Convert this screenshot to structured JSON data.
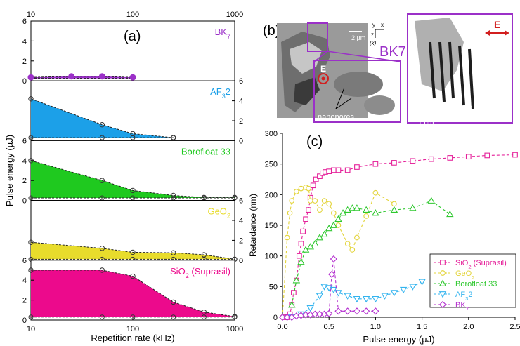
{
  "panel_a": {
    "label": "(a)",
    "xlabel": "Repetition rate (kHz)",
    "ylabel": "Pulse energy (µJ)",
    "x_ticks": [
      "10",
      "100",
      "1000"
    ],
    "y_ticks": [
      "0",
      "2",
      "4",
      "6"
    ]
  },
  "panel_b": {
    "label": "(b)",
    "material": "BK7",
    "scale_2um": "2 µm",
    "scale_1um_inset": "1 µm",
    "scale_1um_right": "1 µm",
    "E_left": "E",
    "E_right": "E",
    "nanopores": "nanopores",
    "nanoplanes": "nanoplanes",
    "axis_y": "y",
    "axis_x": "x",
    "axis_z": "z",
    "axis_k": "(k)"
  },
  "panel_c": {
    "label": "(c)",
    "xlabel": "Pulse energy (µJ)",
    "ylabel": "Retardance (nm)",
    "x_ticks": [
      "0.0",
      "0.5",
      "1.0",
      "1.5",
      "2.0",
      "2.5"
    ],
    "y_ticks": [
      "0",
      "50",
      "100",
      "150",
      "200",
      "250",
      "300"
    ]
  },
  "chart_data": [
    {
      "type": "area",
      "panel": "a",
      "xlabel": "Repetition rate (kHz)",
      "ylabel": "Pulse energy (µJ)",
      "x_scale": "log",
      "xlim": [
        10,
        1000
      ],
      "ylim": [
        0,
        6
      ],
      "subplots": [
        {
          "name": "BK7",
          "color": "#9b30c8",
          "y_axis": "left",
          "marker": "circle",
          "x": [
            10,
            25,
            50,
            100
          ],
          "upper": [
            0.35,
            0.45,
            0.45,
            0.35
          ],
          "lower": [
            0.25,
            0.25,
            0.25,
            0.25
          ]
        },
        {
          "name": "AF32",
          "color": "#1ca0e8",
          "y_axis": "right",
          "marker": "circle",
          "x": [
            10,
            50,
            100,
            250
          ],
          "upper": [
            4.2,
            1.6,
            0.7,
            0.3
          ],
          "lower": [
            0.3,
            0.3,
            0.3,
            0.3
          ]
        },
        {
          "name": "Borofloat 33",
          "color": "#1fc91f",
          "y_axis": "left",
          "marker": "circle",
          "x": [
            10,
            50,
            100,
            250,
            500,
            1000
          ],
          "upper": [
            4.0,
            2.0,
            1.0,
            0.5,
            0.3,
            0.3
          ],
          "lower": [
            0.25,
            0.25,
            0.25,
            0.25,
            0.25,
            0.25
          ]
        },
        {
          "name": "GeO2",
          "color": "#e8dc2c",
          "y_axis": "right",
          "marker": "circle",
          "x": [
            10,
            50,
            100,
            250,
            500,
            1000
          ],
          "upper": [
            1.8,
            1.2,
            0.8,
            0.75,
            0.55,
            0.1
          ],
          "lower": [
            0.1,
            0.1,
            0.1,
            0.1,
            0.1,
            0.1
          ]
        },
        {
          "name": "SiO2 (Suprasil)",
          "color": "#ec0a8c",
          "y_axis": "left",
          "marker": "circle",
          "x": [
            10,
            50,
            100,
            250,
            500,
            1000
          ],
          "upper": [
            5.0,
            5.0,
            4.4,
            1.8,
            0.8,
            0.35
          ],
          "lower": [
            0.3,
            0.3,
            0.3,
            0.3,
            0.3,
            0.3
          ]
        }
      ],
      "y_ticks_right": [
        "0",
        "2",
        "4",
        "6"
      ]
    },
    {
      "type": "line",
      "panel": "c",
      "xlabel": "Pulse energy (µJ)",
      "ylabel": "Retardance (nm)",
      "xlim": [
        0,
        2.5
      ],
      "ylim": [
        0,
        300
      ],
      "legend_position": "bottom-right",
      "series": [
        {
          "name": "SiO2 (Suprasil)",
          "color": "#e5219a",
          "marker": "square",
          "x": [
            0.02,
            0.05,
            0.08,
            0.1,
            0.12,
            0.15,
            0.18,
            0.2,
            0.22,
            0.25,
            0.28,
            0.3,
            0.33,
            0.36,
            0.4,
            0.43,
            0.46,
            0.5,
            0.55,
            0.6,
            0.7,
            0.8,
            1.0,
            1.2,
            1.4,
            1.6,
            1.8,
            2.0,
            2.2,
            2.5
          ],
          "y": [
            0,
            0,
            5,
            20,
            40,
            60,
            100,
            120,
            140,
            160,
            175,
            195,
            215,
            225,
            230,
            235,
            237,
            238,
            240,
            240,
            240,
            245,
            250,
            252,
            255,
            258,
            260,
            262,
            264,
            265
          ]
        },
        {
          "name": "GeO2",
          "color": "#e3d43a",
          "marker": "circle",
          "x": [
            0.0,
            0.05,
            0.08,
            0.1,
            0.15,
            0.2,
            0.25,
            0.28,
            0.3,
            0.35,
            0.4,
            0.45,
            0.5,
            0.55,
            0.6,
            0.7,
            0.75,
            0.8,
            0.9,
            1.0,
            1.2
          ],
          "y": [
            0,
            130,
            170,
            190,
            205,
            210,
            212,
            210,
            190,
            190,
            175,
            190,
            185,
            170,
            150,
            120,
            110,
            130,
            165,
            203,
            185
          ]
        },
        {
          "name": "Borofloat 33",
          "color": "#2ec82e",
          "marker": "triangle-up",
          "x": [
            0.1,
            0.15,
            0.2,
            0.25,
            0.3,
            0.35,
            0.4,
            0.45,
            0.5,
            0.55,
            0.6,
            0.65,
            0.7,
            0.75,
            0.8,
            0.9,
            1.0,
            1.2,
            1.4,
            1.6,
            1.8
          ],
          "y": [
            20,
            60,
            90,
            110,
            115,
            120,
            130,
            135,
            145,
            150,
            160,
            170,
            175,
            178,
            178,
            175,
            170,
            175,
            178,
            190,
            168
          ]
        },
        {
          "name": "AF32",
          "color": "#33b4ef",
          "marker": "triangle-down",
          "x": [
            0.1,
            0.2,
            0.3,
            0.4,
            0.45,
            0.5,
            0.55,
            0.6,
            0.7,
            0.8,
            0.9,
            1.0,
            1.1,
            1.2,
            1.3,
            1.4,
            1.5
          ],
          "y": [
            0,
            5,
            15,
            35,
            50,
            48,
            45,
            40,
            35,
            30,
            30,
            30,
            35,
            40,
            45,
            50,
            58
          ]
        },
        {
          "name": "BK7",
          "color": "#b42fcf",
          "marker": "diamond",
          "x": [
            0.0,
            0.05,
            0.1,
            0.15,
            0.2,
            0.25,
            0.3,
            0.35,
            0.4,
            0.45,
            0.5,
            0.53,
            0.55,
            0.6,
            0.7,
            0.8,
            0.9,
            1.0
          ],
          "y": [
            0,
            0,
            0,
            2,
            3,
            4,
            4,
            5,
            5,
            5,
            6,
            70,
            95,
            10,
            10,
            10,
            10,
            10
          ]
        }
      ],
      "legend": [
        "SiO2 (Suprasil)",
        "GeO2",
        "Borofloat 33",
        "AF32",
        "BK7"
      ]
    }
  ]
}
